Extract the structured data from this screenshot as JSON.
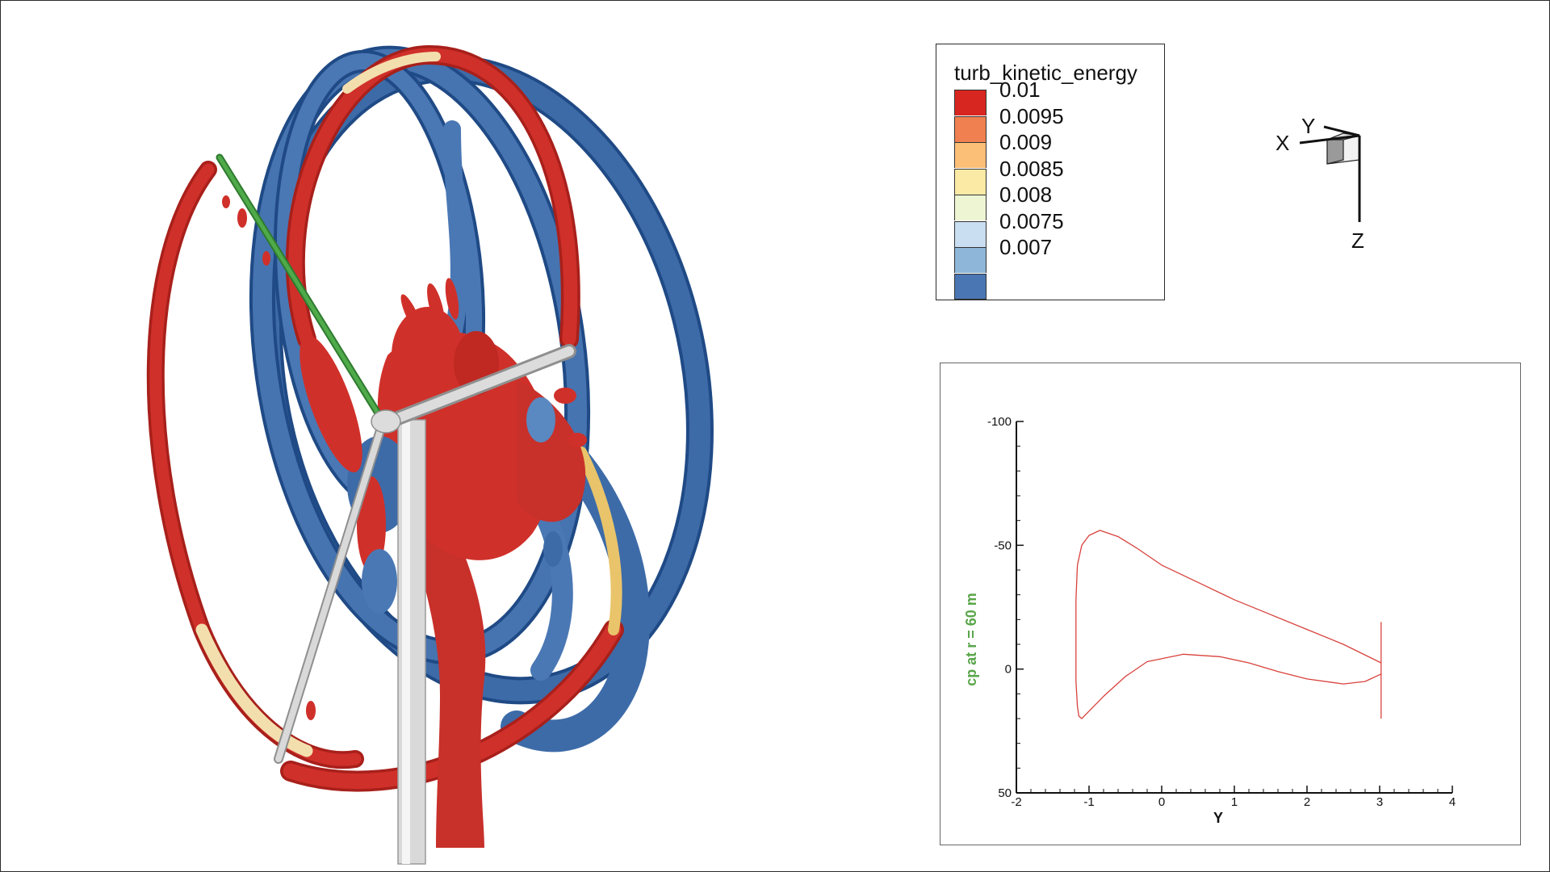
{
  "legend": {
    "title": "turb_kinetic_energy",
    "levels": [
      {
        "label": "0.01",
        "color": "#d7261f"
      },
      {
        "label": "0.0095",
        "color": "#f08050"
      },
      {
        "label": "0.009",
        "color": "#fbbf77"
      },
      {
        "label": "0.0085",
        "color": "#fbeaa5"
      },
      {
        "label": "0.008",
        "color": "#edf5d3"
      },
      {
        "label": "0.0075",
        "color": "#c9def0"
      },
      {
        "label": "0.007",
        "color": "#8eb6d8"
      },
      {
        "label": "",
        "color": "#4a77b4"
      }
    ]
  },
  "axis_triad": {
    "x": "X",
    "y": "Y",
    "z": "Z"
  },
  "colors": {
    "vortex_high": "#d0302a",
    "vortex_low": "#3d6ba8",
    "tower": "#d9d9d9",
    "blade_highlight": "#3a9a3a",
    "plot_line": "#d8423c"
  },
  "chart_data": {
    "type": "line",
    "xlabel": "Y",
    "ylabel": "cp at r = 60 m",
    "xlim": [
      -2,
      4
    ],
    "ylim": [
      50,
      -100
    ],
    "y_inverted": true,
    "xticks": [
      "-2",
      "-1",
      "0",
      "1",
      "2",
      "3",
      "4"
    ],
    "yticks": [
      "-100",
      "-50",
      "0",
      "50"
    ],
    "series": [
      {
        "points": [
          [
            3.02,
            -2.5
          ],
          [
            2.5,
            -10
          ],
          [
            2.0,
            -16
          ],
          [
            1.5,
            -22
          ],
          [
            1.0,
            -28
          ],
          [
            0.5,
            -35
          ],
          [
            0.0,
            -42
          ],
          [
            -0.35,
            -49
          ],
          [
            -0.6,
            -53.5
          ],
          [
            -0.85,
            -56
          ],
          [
            -1.0,
            -54
          ],
          [
            -1.1,
            -50
          ],
          [
            -1.16,
            -42
          ],
          [
            -1.18,
            -28
          ],
          [
            -1.18,
            -10
          ],
          [
            -1.18,
            5
          ],
          [
            -1.16,
            15
          ],
          [
            -1.14,
            19
          ],
          [
            -1.1,
            20
          ],
          [
            -1.0,
            17
          ],
          [
            -0.8,
            11
          ],
          [
            -0.5,
            3
          ],
          [
            -0.2,
            -3
          ],
          [
            0.3,
            -6
          ],
          [
            0.8,
            -5
          ],
          [
            1.2,
            -2.5
          ],
          [
            1.6,
            1
          ],
          [
            2.0,
            4
          ],
          [
            2.5,
            6
          ],
          [
            2.8,
            5
          ],
          [
            3.02,
            2
          ]
        ]
      },
      {
        "points": [
          [
            3.02,
            -19
          ],
          [
            3.02,
            20
          ]
        ]
      }
    ]
  }
}
